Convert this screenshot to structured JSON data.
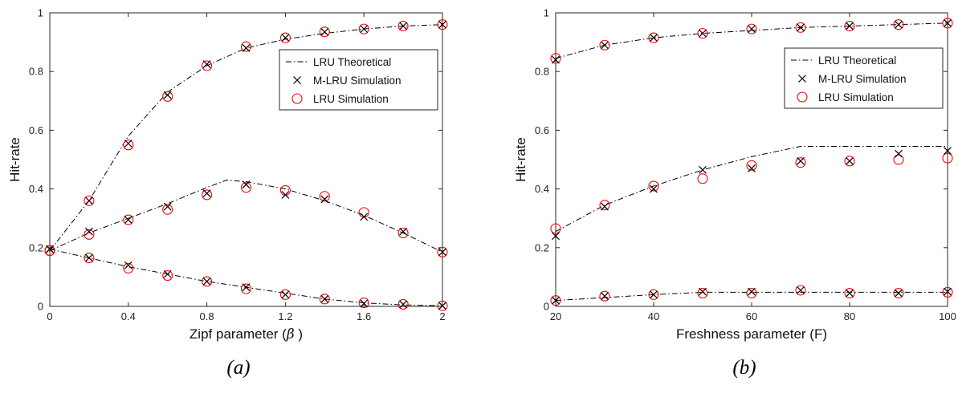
{
  "chart_data": [
    {
      "type": "line",
      "caption": "(a)",
      "xlabel": "Zipf parameter (",
      "xlabel_symbol": "β",
      "xlabel_end": " )",
      "ylabel": "Hit-rate",
      "xlim": [
        0,
        2
      ],
      "ylim": [
        0,
        1
      ],
      "xticks": [
        0,
        0.4,
        0.8,
        1.2,
        1.6,
        2
      ],
      "yticks": [
        0,
        0.2,
        0.4,
        0.6,
        0.8,
        1
      ],
      "legend_position": "top-right",
      "legend": [
        "LRU Theoretical",
        "M-LRU Simulation",
        "LRU Simulation"
      ],
      "series": [
        {
          "theory": {
            "x": [
              0,
              0.2,
              0.4,
              0.6,
              0.8,
              1.0,
              1.2,
              1.4,
              1.6,
              1.8,
              2.0
            ],
            "y": [
              0.19,
              0.36,
              0.58,
              0.73,
              0.82,
              0.88,
              0.91,
              0.93,
              0.945,
              0.955,
              0.96
            ]
          },
          "mlru": {
            "x": [
              0,
              0.2,
              0.4,
              0.6,
              0.8,
              1.0,
              1.2,
              1.4,
              1.6,
              1.8,
              2.0
            ],
            "y": [
              0.195,
              0.36,
              0.555,
              0.72,
              0.825,
              0.88,
              0.915,
              0.935,
              0.945,
              0.955,
              0.96
            ]
          },
          "lru": {
            "x": [
              0,
              0.2,
              0.4,
              0.6,
              0.8,
              1.0,
              1.2,
              1.4,
              1.6,
              1.8,
              2.0
            ],
            "y": [
              0.19,
              0.36,
              0.55,
              0.715,
              0.82,
              0.885,
              0.915,
              0.935,
              0.945,
              0.955,
              0.96
            ]
          }
        },
        {
          "theory": {
            "x": [
              0,
              0.2,
              0.4,
              0.6,
              0.8,
              0.9,
              1.0,
              1.2,
              1.4,
              1.6,
              1.8,
              2.0
            ],
            "y": [
              0.19,
              0.25,
              0.3,
              0.35,
              0.405,
              0.43,
              0.425,
              0.4,
              0.36,
              0.31,
              0.25,
              0.185
            ]
          },
          "mlru": {
            "x": [
              0,
              0.2,
              0.4,
              0.6,
              0.8,
              1.0,
              1.2,
              1.4,
              1.6,
              1.8,
              2.0
            ],
            "y": [
              0.195,
              0.255,
              0.295,
              0.34,
              0.385,
              0.415,
              0.38,
              0.365,
              0.305,
              0.255,
              0.185
            ]
          },
          "lru": {
            "x": [
              0,
              0.2,
              0.4,
              0.6,
              0.8,
              1.0,
              1.2,
              1.4,
              1.6,
              1.8,
              2.0
            ],
            "y": [
              0.19,
              0.245,
              0.295,
              0.33,
              0.38,
              0.405,
              0.395,
              0.375,
              0.32,
              0.25,
              0.185
            ]
          }
        },
        {
          "theory": {
            "x": [
              0,
              0.2,
              0.4,
              0.6,
              0.8,
              1.0,
              1.2,
              1.4,
              1.6,
              1.8,
              2.0
            ],
            "y": [
              0.195,
              0.165,
              0.135,
              0.11,
              0.085,
              0.065,
              0.045,
              0.025,
              0.012,
              0.005,
              0.002
            ]
          },
          "mlru": {
            "x": [
              0,
              0.2,
              0.4,
              0.6,
              0.8,
              1.0,
              1.2,
              1.4,
              1.6,
              1.8,
              2.0
            ],
            "y": [
              0.195,
              0.165,
              0.14,
              0.11,
              0.085,
              0.065,
              0.04,
              0.025,
              0.01,
              0.007,
              0.002
            ]
          },
          "lru": {
            "x": [
              0,
              0.2,
              0.4,
              0.6,
              0.8,
              1.0,
              1.2,
              1.4,
              1.6,
              1.8,
              2.0
            ],
            "y": [
              0.19,
              0.165,
              0.13,
              0.105,
              0.085,
              0.06,
              0.04,
              0.025,
              0.012,
              0.007,
              0.002
            ]
          }
        }
      ]
    },
    {
      "type": "line",
      "caption": "(b)",
      "xlabel": "Freshness parameter (F)",
      "xlabel_symbol": "",
      "xlabel_end": "",
      "ylabel": "Hit-rate",
      "xlim": [
        20,
        100
      ],
      "ylim": [
        0,
        1
      ],
      "xticks": [
        20,
        40,
        60,
        80,
        100
      ],
      "yticks": [
        0,
        0.2,
        0.4,
        0.6,
        0.8,
        1
      ],
      "legend_position": "top-right",
      "legend": [
        "LRU Theoretical",
        "M-LRU Simulation",
        "LRU Simulation"
      ],
      "series": [
        {
          "theory": {
            "x": [
              20,
              30,
              40,
              50,
              60,
              70,
              80,
              90,
              100
            ],
            "y": [
              0.845,
              0.89,
              0.915,
              0.93,
              0.94,
              0.95,
              0.955,
              0.96,
              0.965
            ]
          },
          "mlru": {
            "x": [
              20,
              30,
              40,
              50,
              60,
              70,
              80,
              90,
              100
            ],
            "y": [
              0.84,
              0.89,
              0.915,
              0.93,
              0.945,
              0.95,
              0.955,
              0.96,
              0.965
            ]
          },
          "lru": {
            "x": [
              20,
              30,
              40,
              50,
              60,
              70,
              80,
              90,
              100
            ],
            "y": [
              0.845,
              0.89,
              0.915,
              0.93,
              0.945,
              0.95,
              0.955,
              0.96,
              0.965
            ]
          }
        },
        {
          "theory": {
            "x": [
              20,
              30,
              40,
              50,
              60,
              70,
              80,
              90,
              100
            ],
            "y": [
              0.255,
              0.345,
              0.41,
              0.465,
              0.51,
              0.545,
              0.545,
              0.545,
              0.545
            ]
          },
          "mlru": {
            "x": [
              20,
              30,
              40,
              50,
              60,
              70,
              80,
              90,
              100
            ],
            "y": [
              0.24,
              0.34,
              0.4,
              0.465,
              0.47,
              0.495,
              0.495,
              0.52,
              0.53
            ]
          },
          "lru": {
            "x": [
              20,
              30,
              40,
              50,
              60,
              70,
              80,
              90,
              100
            ],
            "y": [
              0.265,
              0.345,
              0.41,
              0.435,
              0.48,
              0.49,
              0.495,
              0.5,
              0.505
            ]
          }
        },
        {
          "theory": {
            "x": [
              20,
              30,
              40,
              50,
              60,
              70,
              80,
              90,
              100
            ],
            "y": [
              0.02,
              0.03,
              0.04,
              0.048,
              0.048,
              0.048,
              0.048,
              0.048,
              0.048
            ]
          },
          "mlru": {
            "x": [
              20,
              30,
              40,
              50,
              60,
              70,
              80,
              90,
              100
            ],
            "y": [
              0.02,
              0.035,
              0.04,
              0.05,
              0.05,
              0.055,
              0.045,
              0.045,
              0.05
            ]
          },
          "lru": {
            "x": [
              20,
              30,
              40,
              50,
              60,
              70,
              80,
              90,
              100
            ],
            "y": [
              0.02,
              0.035,
              0.04,
              0.045,
              0.045,
              0.055,
              0.045,
              0.045,
              0.048
            ]
          }
        }
      ]
    }
  ]
}
